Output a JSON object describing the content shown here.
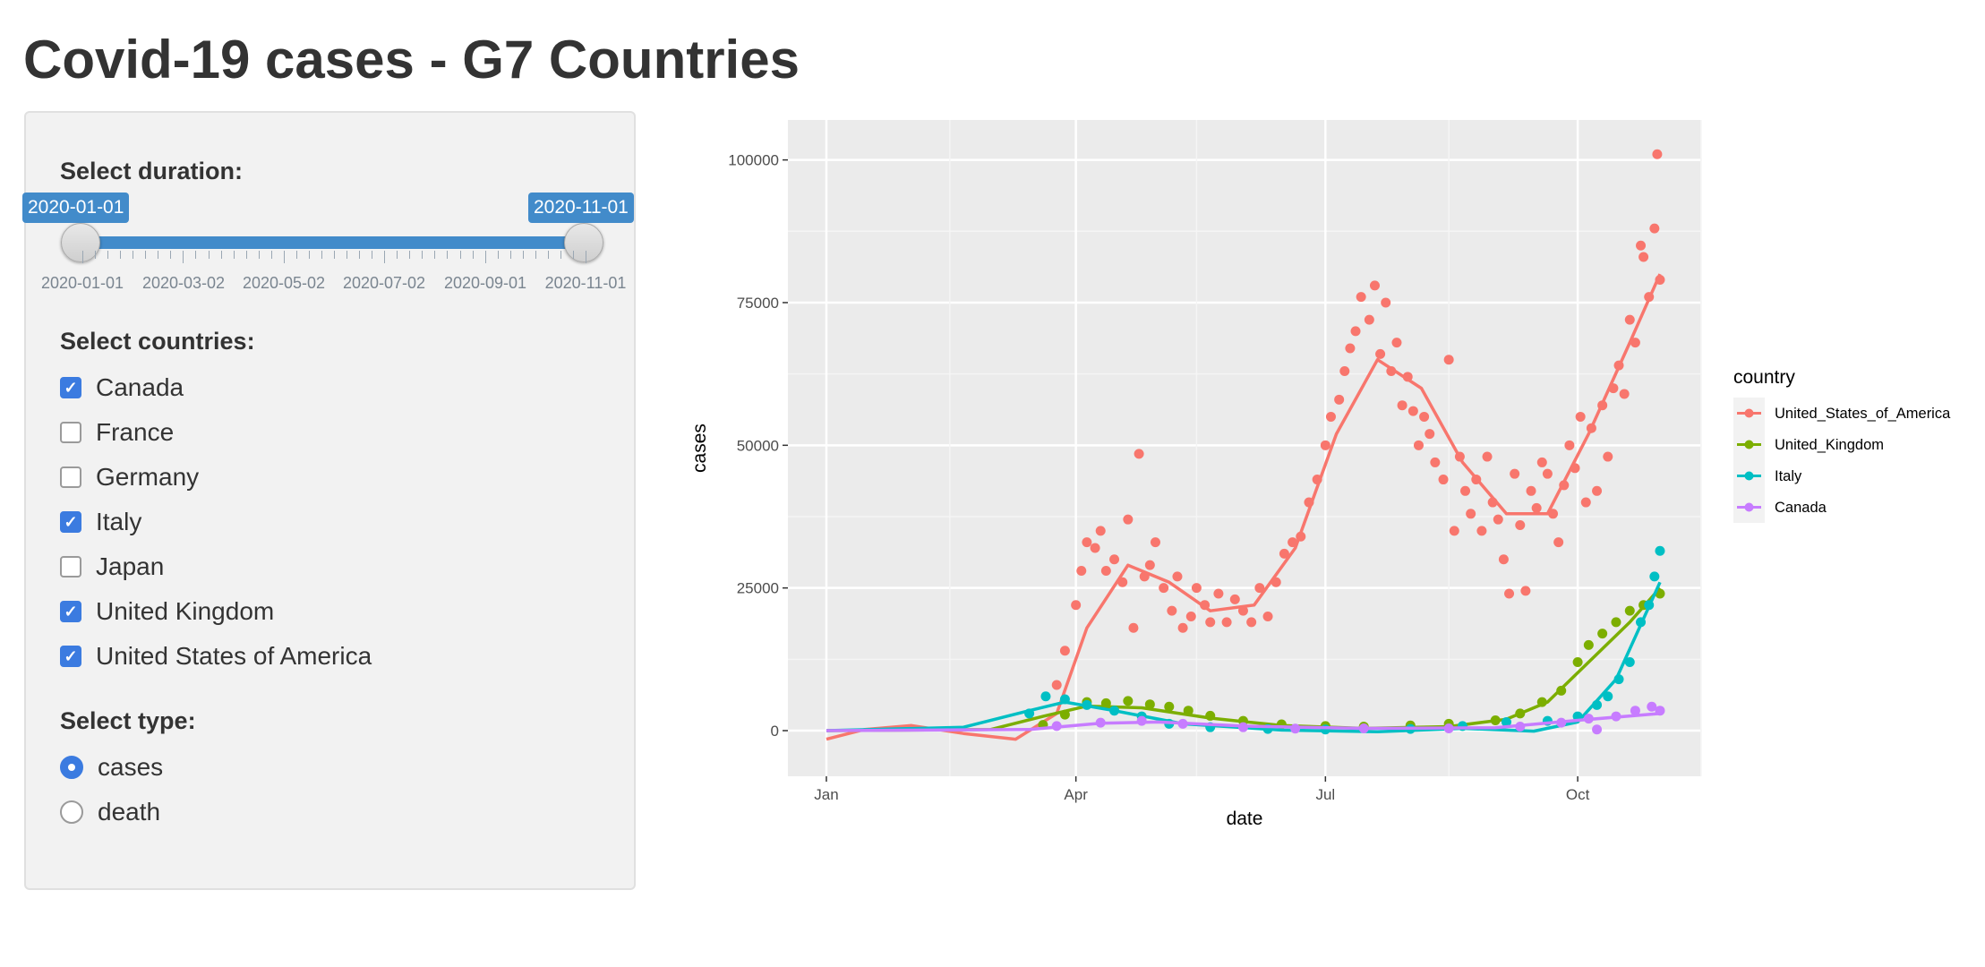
{
  "page": {
    "title": "Covid-19 cases - G7 Countries"
  },
  "sidebar": {
    "duration": {
      "label": "Select duration:",
      "start": "2020-01-01",
      "end": "2020-11-01",
      "tick_labels": [
        "2020-01-01",
        "2020-03-02",
        "2020-05-02",
        "2020-07-02",
        "2020-09-01",
        "2020-11-01"
      ]
    },
    "countries": {
      "label": "Select countries:",
      "options": [
        {
          "label": "Canada",
          "checked": true
        },
        {
          "label": "France",
          "checked": false
        },
        {
          "label": "Germany",
          "checked": false
        },
        {
          "label": "Italy",
          "checked": true
        },
        {
          "label": "Japan",
          "checked": false
        },
        {
          "label": "United Kingdom",
          "checked": true
        },
        {
          "label": "United States of America",
          "checked": true
        }
      ]
    },
    "type": {
      "label": "Select type:",
      "options": [
        {
          "label": "cases",
          "selected": true
        },
        {
          "label": "death",
          "selected": false
        }
      ]
    }
  },
  "chart_data": {
    "type": "scatter",
    "xlabel": "date",
    "ylabel": "cases",
    "x_ticks": [
      "Jan",
      "Apr",
      "Jul",
      "Oct"
    ],
    "y_ticks": [
      "0",
      "25000",
      "50000",
      "75000",
      "100000"
    ],
    "xlim": [
      "2020-01-01",
      "2020-11-01"
    ],
    "ylim": [
      -8000,
      107000
    ],
    "grid": true,
    "legend_title": "country",
    "legend_position": "right",
    "series": [
      {
        "name": "United_States_of_America",
        "color": "#f8766d",
        "points": [
          [
            "2020-03-25",
            8000
          ],
          [
            "2020-03-28",
            14000
          ],
          [
            "2020-04-01",
            22000
          ],
          [
            "2020-04-03",
            28000
          ],
          [
            "2020-04-05",
            33000
          ],
          [
            "2020-04-08",
            32000
          ],
          [
            "2020-04-10",
            35000
          ],
          [
            "2020-04-12",
            28000
          ],
          [
            "2020-04-15",
            30000
          ],
          [
            "2020-04-18",
            26000
          ],
          [
            "2020-04-20",
            37000
          ],
          [
            "2020-04-22",
            18000
          ],
          [
            "2020-04-24",
            48500
          ],
          [
            "2020-04-26",
            27000
          ],
          [
            "2020-04-28",
            29000
          ],
          [
            "2020-04-30",
            33000
          ],
          [
            "2020-05-03",
            25000
          ],
          [
            "2020-05-06",
            21000
          ],
          [
            "2020-05-08",
            27000
          ],
          [
            "2020-05-10",
            18000
          ],
          [
            "2020-05-13",
            20000
          ],
          [
            "2020-05-15",
            25000
          ],
          [
            "2020-05-18",
            22000
          ],
          [
            "2020-05-20",
            19000
          ],
          [
            "2020-05-23",
            24000
          ],
          [
            "2020-05-26",
            19000
          ],
          [
            "2020-05-29",
            23000
          ],
          [
            "2020-06-01",
            21000
          ],
          [
            "2020-06-04",
            19000
          ],
          [
            "2020-06-07",
            25000
          ],
          [
            "2020-06-10",
            20000
          ],
          [
            "2020-06-13",
            26000
          ],
          [
            "2020-06-16",
            31000
          ],
          [
            "2020-06-19",
            33000
          ],
          [
            "2020-06-22",
            34000
          ],
          [
            "2020-06-25",
            40000
          ],
          [
            "2020-06-28",
            44000
          ],
          [
            "2020-07-01",
            50000
          ],
          [
            "2020-07-03",
            55000
          ],
          [
            "2020-07-06",
            58000
          ],
          [
            "2020-07-08",
            63000
          ],
          [
            "2020-07-10",
            67000
          ],
          [
            "2020-07-12",
            70000
          ],
          [
            "2020-07-14",
            76000
          ],
          [
            "2020-07-17",
            72000
          ],
          [
            "2020-07-19",
            78000
          ],
          [
            "2020-07-21",
            66000
          ],
          [
            "2020-07-23",
            75000
          ],
          [
            "2020-07-25",
            63000
          ],
          [
            "2020-07-27",
            68000
          ],
          [
            "2020-07-29",
            57000
          ],
          [
            "2020-07-31",
            62000
          ],
          [
            "2020-08-02",
            56000
          ],
          [
            "2020-08-04",
            50000
          ],
          [
            "2020-08-06",
            55000
          ],
          [
            "2020-08-08",
            52000
          ],
          [
            "2020-08-10",
            47000
          ],
          [
            "2020-08-13",
            44000
          ],
          [
            "2020-08-15",
            65000
          ],
          [
            "2020-08-17",
            35000
          ],
          [
            "2020-08-19",
            48000
          ],
          [
            "2020-08-21",
            42000
          ],
          [
            "2020-08-23",
            38000
          ],
          [
            "2020-08-25",
            44000
          ],
          [
            "2020-08-27",
            35000
          ],
          [
            "2020-08-29",
            48000
          ],
          [
            "2020-08-31",
            40000
          ],
          [
            "2020-09-02",
            37000
          ],
          [
            "2020-09-04",
            30000
          ],
          [
            "2020-09-06",
            24000
          ],
          [
            "2020-09-08",
            45000
          ],
          [
            "2020-09-10",
            36000
          ],
          [
            "2020-09-12",
            24500
          ],
          [
            "2020-09-14",
            42000
          ],
          [
            "2020-09-16",
            39000
          ],
          [
            "2020-09-18",
            47000
          ],
          [
            "2020-09-20",
            45000
          ],
          [
            "2020-09-22",
            38000
          ],
          [
            "2020-09-24",
            33000
          ],
          [
            "2020-09-26",
            43000
          ],
          [
            "2020-09-28",
            50000
          ],
          [
            "2020-09-30",
            46000
          ],
          [
            "2020-10-02",
            55000
          ],
          [
            "2020-10-04",
            40000
          ],
          [
            "2020-10-06",
            53000
          ],
          [
            "2020-10-08",
            42000
          ],
          [
            "2020-10-10",
            57000
          ],
          [
            "2020-10-12",
            48000
          ],
          [
            "2020-10-14",
            60000
          ],
          [
            "2020-10-16",
            64000
          ],
          [
            "2020-10-18",
            59000
          ],
          [
            "2020-10-20",
            72000
          ],
          [
            "2020-10-22",
            68000
          ],
          [
            "2020-10-24",
            85000
          ],
          [
            "2020-10-25",
            83000
          ],
          [
            "2020-10-27",
            76000
          ],
          [
            "2020-10-29",
            88000
          ],
          [
            "2020-10-30",
            101000
          ],
          [
            "2020-10-31",
            79000
          ]
        ],
        "smooth": [
          [
            "2020-01-01",
            -1500
          ],
          [
            "2020-01-15",
            200
          ],
          [
            "2020-02-01",
            900
          ],
          [
            "2020-02-20",
            -500
          ],
          [
            "2020-03-10",
            -1500
          ],
          [
            "2020-03-25",
            3000
          ],
          [
            "2020-04-05",
            18000
          ],
          [
            "2020-04-20",
            29000
          ],
          [
            "2020-05-05",
            26000
          ],
          [
            "2020-05-20",
            21000
          ],
          [
            "2020-06-05",
            22000
          ],
          [
            "2020-06-20",
            32000
          ],
          [
            "2020-07-05",
            52000
          ],
          [
            "2020-07-20",
            65000
          ],
          [
            "2020-08-05",
            60000
          ],
          [
            "2020-08-20",
            47000
          ],
          [
            "2020-09-05",
            38000
          ],
          [
            "2020-09-20",
            38000
          ],
          [
            "2020-10-05",
            52000
          ],
          [
            "2020-10-20",
            68000
          ],
          [
            "2020-10-31",
            80000
          ]
        ]
      },
      {
        "name": "United_Kingdom",
        "color": "#7cae00",
        "points": [
          [
            "2020-03-20",
            1000
          ],
          [
            "2020-03-28",
            2800
          ],
          [
            "2020-04-05",
            5000
          ],
          [
            "2020-04-12",
            4800
          ],
          [
            "2020-04-20",
            5200
          ],
          [
            "2020-04-28",
            4600
          ],
          [
            "2020-05-05",
            4200
          ],
          [
            "2020-05-12",
            3500
          ],
          [
            "2020-05-20",
            2600
          ],
          [
            "2020-06-01",
            1700
          ],
          [
            "2020-06-15",
            1100
          ],
          [
            "2020-07-01",
            800
          ],
          [
            "2020-07-15",
            700
          ],
          [
            "2020-08-01",
            900
          ],
          [
            "2020-08-15",
            1200
          ],
          [
            "2020-09-01",
            1800
          ],
          [
            "2020-09-10",
            3000
          ],
          [
            "2020-09-18",
            5000
          ],
          [
            "2020-09-25",
            7000
          ],
          [
            "2020-10-01",
            12000
          ],
          [
            "2020-10-05",
            15000
          ],
          [
            "2020-10-10",
            17000
          ],
          [
            "2020-10-15",
            19000
          ],
          [
            "2020-10-20",
            21000
          ],
          [
            "2020-10-25",
            22000
          ],
          [
            "2020-10-31",
            24000
          ]
        ],
        "smooth": [
          [
            "2020-01-01",
            0
          ],
          [
            "2020-03-01",
            200
          ],
          [
            "2020-03-20",
            2500
          ],
          [
            "2020-04-05",
            4300
          ],
          [
            "2020-04-25",
            4000
          ],
          [
            "2020-05-20",
            2200
          ],
          [
            "2020-06-15",
            900
          ],
          [
            "2020-07-15",
            400
          ],
          [
            "2020-08-15",
            700
          ],
          [
            "2020-09-05",
            2000
          ],
          [
            "2020-09-20",
            5000
          ],
          [
            "2020-10-05",
            12000
          ],
          [
            "2020-10-20",
            19000
          ],
          [
            "2020-10-31",
            25000
          ]
        ]
      },
      {
        "name": "Italy",
        "color": "#00bfc4",
        "points": [
          [
            "2020-03-15",
            3000
          ],
          [
            "2020-03-21",
            6000
          ],
          [
            "2020-03-28",
            5500
          ],
          [
            "2020-04-05",
            4500
          ],
          [
            "2020-04-15",
            3500
          ],
          [
            "2020-04-25",
            2500
          ],
          [
            "2020-05-05",
            1200
          ],
          [
            "2020-05-20",
            600
          ],
          [
            "2020-06-10",
            300
          ],
          [
            "2020-07-01",
            200
          ],
          [
            "2020-08-01",
            300
          ],
          [
            "2020-08-20",
            800
          ],
          [
            "2020-09-05",
            1500
          ],
          [
            "2020-09-20",
            1700
          ],
          [
            "2020-10-01",
            2500
          ],
          [
            "2020-10-08",
            4500
          ],
          [
            "2020-10-12",
            6000
          ],
          [
            "2020-10-16",
            9000
          ],
          [
            "2020-10-20",
            12000
          ],
          [
            "2020-10-24",
            19000
          ],
          [
            "2020-10-27",
            22000
          ],
          [
            "2020-10-29",
            27000
          ],
          [
            "2020-10-31",
            31500
          ]
        ],
        "smooth": [
          [
            "2020-01-01",
            0
          ],
          [
            "2020-02-20",
            600
          ],
          [
            "2020-03-15",
            3500
          ],
          [
            "2020-03-28",
            5000
          ],
          [
            "2020-04-15",
            3500
          ],
          [
            "2020-05-10",
            1200
          ],
          [
            "2020-06-15",
            100
          ],
          [
            "2020-07-20",
            -200
          ],
          [
            "2020-08-20",
            400
          ],
          [
            "2020-09-15",
            -100
          ],
          [
            "2020-10-01",
            1500
          ],
          [
            "2020-10-15",
            9000
          ],
          [
            "2020-10-31",
            26000
          ]
        ]
      },
      {
        "name": "Canada",
        "color": "#c77cff",
        "points": [
          [
            "2020-03-25",
            800
          ],
          [
            "2020-04-10",
            1400
          ],
          [
            "2020-04-25",
            1700
          ],
          [
            "2020-05-10",
            1200
          ],
          [
            "2020-06-01",
            600
          ],
          [
            "2020-06-20",
            350
          ],
          [
            "2020-07-15",
            400
          ],
          [
            "2020-08-15",
            400
          ],
          [
            "2020-09-10",
            700
          ],
          [
            "2020-09-25",
            1400
          ],
          [
            "2020-10-05",
            2100
          ],
          [
            "2020-10-08",
            200
          ],
          [
            "2020-10-15",
            2500
          ],
          [
            "2020-10-22",
            3500
          ],
          [
            "2020-10-28",
            4200
          ],
          [
            "2020-10-31",
            3500
          ]
        ],
        "smooth": [
          [
            "2020-01-01",
            0
          ],
          [
            "2020-03-15",
            200
          ],
          [
            "2020-04-10",
            1300
          ],
          [
            "2020-05-01",
            1500
          ],
          [
            "2020-06-01",
            800
          ],
          [
            "2020-07-15",
            400
          ],
          [
            "2020-09-01",
            500
          ],
          [
            "2020-10-01",
            1800
          ],
          [
            "2020-10-31",
            3000
          ]
        ]
      }
    ]
  }
}
